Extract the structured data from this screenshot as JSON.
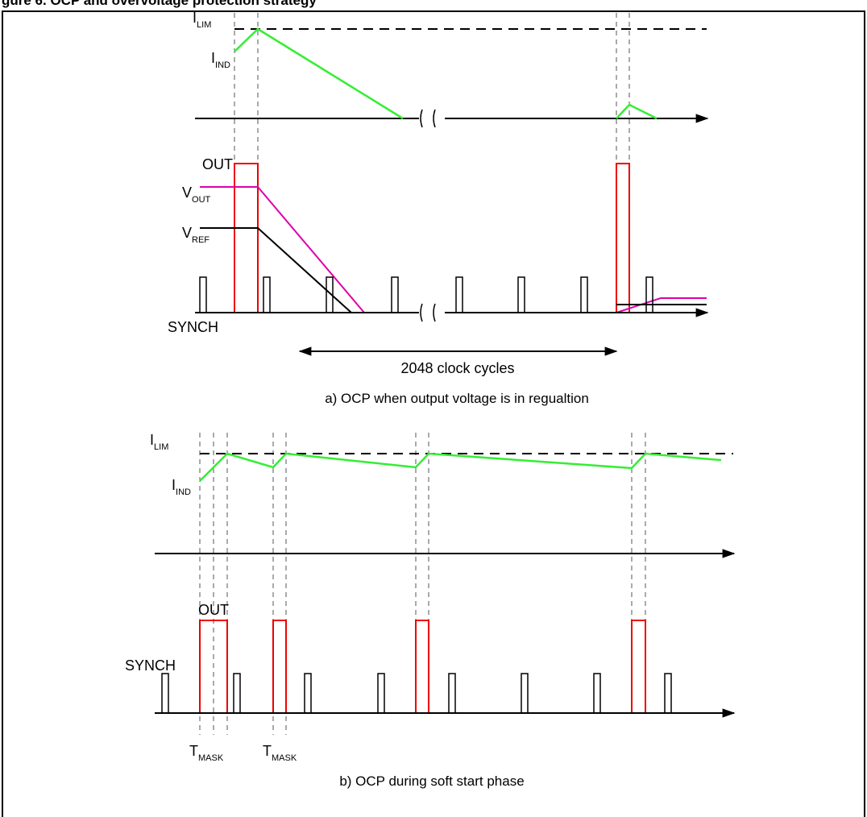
{
  "header": {
    "title": "gure 6.    OCP and overvoltage protection strategy"
  },
  "panel_a": {
    "caption": "a) OCP when output voltage is in regualtion",
    "cycles_label": "2048 clock cycles",
    "labels": {
      "ilim_main": "I",
      "ilim_sub": "LIM",
      "iind_main": "I",
      "iind_sub": "IND",
      "out": "OUT",
      "vout_main": "V",
      "vout_sub": "OUT",
      "vref_main": "V",
      "vref_sub": "REF",
      "synch": "SYNCH"
    }
  },
  "panel_b": {
    "caption": "b) OCP during soft start phase",
    "labels": {
      "ilim_main": "I",
      "ilim_sub": "LIM",
      "iind_main": "I",
      "iind_sub": "IND",
      "out": "OUT",
      "synch": "SYNCH",
      "tmask1_main": "T",
      "tmask1_sub": "MASK",
      "tmask2_main": "T",
      "tmask2_sub": "MASK"
    }
  },
  "colors": {
    "inductor_current": "#33ee33",
    "out_signal": "#ee0000",
    "vout": "#dd00aa",
    "vref": "#000000",
    "axis": "#000000",
    "guide": "#555555"
  }
}
